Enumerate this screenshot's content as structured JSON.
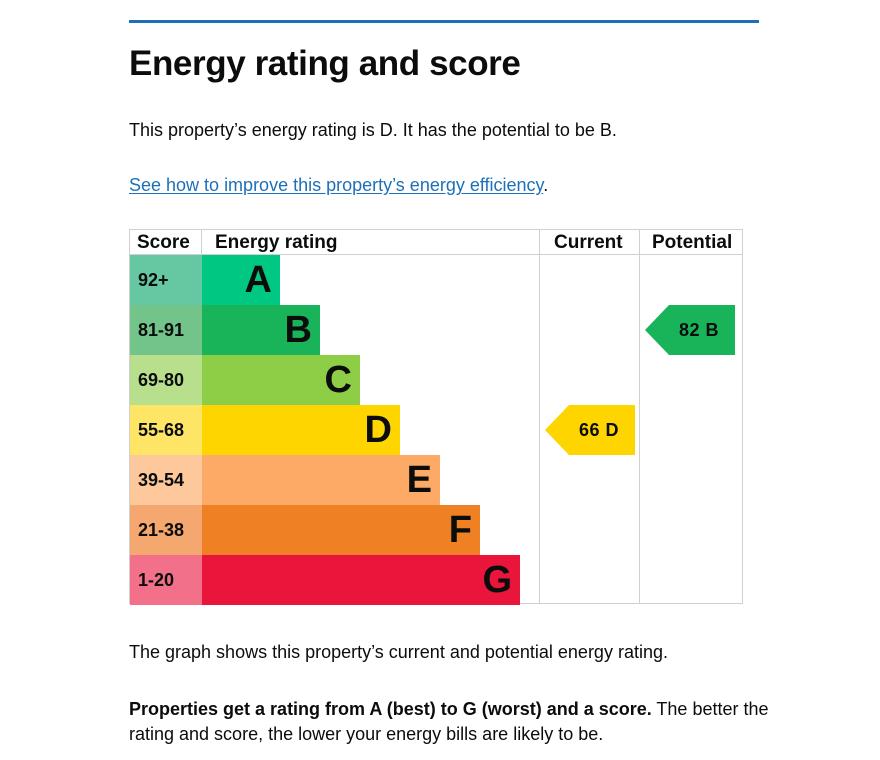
{
  "page": {
    "title": "Energy rating and score",
    "intro": "This property’s energy rating is D. It has the potential to be B.",
    "link_text": "See how to improve this property’s energy efficiency",
    "link_suffix": ".",
    "graph_note": "The graph shows this property’s current and potential energy rating.",
    "rating_bold": "Properties get a rating from A (best) to G (worst) and a score.",
    "rating_rest": " The better the rating and score, the lower your energy bills are likely to be."
  },
  "colors": {
    "accent_rule": "#1d70b8",
    "link": "#1d70b8"
  },
  "chart_data": {
    "type": "bar",
    "title": "Energy rating and score",
    "headers": [
      "Score",
      "Energy rating",
      "Current",
      "Potential"
    ],
    "categories": [
      "A",
      "B",
      "C",
      "D",
      "E",
      "F",
      "G"
    ],
    "score_bands": [
      "92+",
      "81-91",
      "69-80",
      "55-68",
      "39-54",
      "21-38",
      "1-20"
    ],
    "bar_colors": [
      "#00c781",
      "#19b459",
      "#8dce46",
      "#ffd500",
      "#fcaa65",
      "#ef8023",
      "#e9153b"
    ],
    "score_cell_colors": [
      "#66c8a2",
      "#72c48a",
      "#b8e08c",
      "#ffe566",
      "#fdc99c",
      "#f4a76e",
      "#f27089"
    ],
    "current": {
      "score": 66,
      "rating": "D",
      "label": "66  D",
      "color": "#ffd500"
    },
    "potential": {
      "score": 82,
      "rating": "B",
      "label": "82  B",
      "color": "#19b459"
    }
  }
}
